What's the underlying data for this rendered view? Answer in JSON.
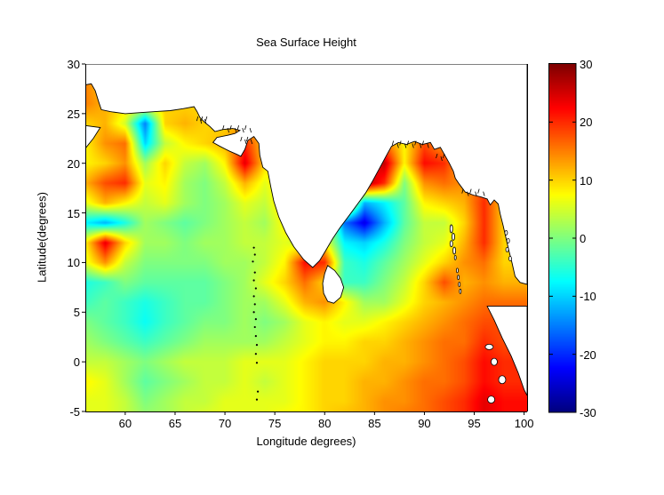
{
  "figure": {
    "title": "Sea Surface Height",
    "xlabel": "Longitude degrees)",
    "ylabel": "Latitude(degrees)"
  },
  "axes": {
    "x_ticks": [
      {
        "label": "60",
        "lon": 60
      },
      {
        "label": "65",
        "lon": 65
      },
      {
        "label": "70",
        "lon": 70
      },
      {
        "label": "75",
        "lon": 75
      },
      {
        "label": "80",
        "lon": 80
      },
      {
        "label": "85",
        "lon": 85
      },
      {
        "label": "90",
        "lon": 90
      },
      {
        "label": "95",
        "lon": 95
      },
      {
        "label": "100",
        "lon": 100
      }
    ],
    "y_ticks": [
      {
        "label": "30",
        "lat": 30
      },
      {
        "label": "25",
        "lat": 25
      },
      {
        "label": "20",
        "lat": 20
      },
      {
        "label": "15",
        "lat": 15
      },
      {
        "label": "10",
        "lat": 10
      },
      {
        "label": "5",
        "lat": 5
      },
      {
        "label": "0",
        "lat": 0
      },
      {
        "label": "-5",
        "lat": -5
      }
    ],
    "lon_min": 56,
    "lon_max": 100.3,
    "lat_min": -5,
    "lat_max": 30
  },
  "colorbar": {
    "ticks": [
      {
        "label": "30",
        "value": 30
      },
      {
        "label": "20",
        "value": 20
      },
      {
        "label": "10",
        "value": 10
      },
      {
        "label": "0",
        "value": 0
      },
      {
        "label": "-10",
        "value": -10
      },
      {
        "label": "-20",
        "value": -20
      },
      {
        "label": "-30",
        "value": -30
      }
    ],
    "clim": [
      -30,
      30
    ],
    "colormap": "jet"
  },
  "chart_data": {
    "type": "heatmap",
    "title": "Sea Surface Height",
    "xlabel": "Longitude degrees)",
    "ylabel": "Latitude(degrees)",
    "clim": [
      -30,
      30
    ],
    "colormap": "jet",
    "grid": {
      "lon_start": 56,
      "lon_step": 2,
      "ncols": 23,
      "lat_start": 30,
      "lat_step": -2,
      "nrows": 19,
      "values": [
        [
          10,
          10,
          10,
          10,
          10,
          10,
          10,
          10,
          10,
          10,
          10,
          10,
          10,
          10,
          10,
          10,
          10,
          10,
          10,
          10,
          10,
          10,
          10
        ],
        [
          15,
          10,
          10,
          10,
          10,
          10,
          10,
          10,
          10,
          10,
          10,
          10,
          10,
          10,
          10,
          10,
          10,
          10,
          10,
          10,
          10,
          10,
          10
        ],
        [
          15,
          12,
          10,
          10,
          10,
          10,
          10,
          10,
          10,
          10,
          10,
          10,
          10,
          10,
          10,
          10,
          10,
          10,
          10,
          10,
          10,
          10,
          10
        ],
        [
          10,
          12,
          5,
          -15,
          10,
          12,
          10,
          10,
          12,
          10,
          10,
          10,
          10,
          10,
          10,
          10,
          10,
          10,
          10,
          10,
          10,
          10,
          10
        ],
        [
          8,
          14,
          16,
          -10,
          4,
          8,
          10,
          12,
          20,
          10,
          10,
          10,
          10,
          10,
          12,
          16,
          8,
          18,
          12,
          10,
          10,
          10,
          10
        ],
        [
          8,
          10,
          14,
          2,
          10,
          4,
          2,
          8,
          24,
          10,
          10,
          10,
          10,
          12,
          22,
          26,
          8,
          22,
          20,
          10,
          10,
          10,
          10
        ],
        [
          12,
          18,
          20,
          6,
          8,
          2,
          0,
          4,
          12,
          6,
          10,
          10,
          10,
          10,
          28,
          20,
          0,
          14,
          16,
          14,
          18,
          10,
          10
        ],
        [
          6,
          12,
          8,
          4,
          6,
          2,
          0,
          2,
          6,
          4,
          10,
          10,
          10,
          18,
          -12,
          -8,
          -2,
          8,
          10,
          12,
          20,
          10,
          10
        ],
        [
          -8,
          -12,
          -6,
          2,
          0,
          -2,
          0,
          2,
          4,
          2,
          8,
          10,
          10,
          -16,
          -24,
          -12,
          -2,
          4,
          4,
          10,
          20,
          10,
          10
        ],
        [
          8,
          24,
          10,
          2,
          2,
          0,
          2,
          2,
          4,
          4,
          6,
          4,
          8,
          -8,
          -10,
          -6,
          0,
          4,
          6,
          12,
          20,
          10,
          10
        ],
        [
          6,
          14,
          4,
          0,
          0,
          0,
          0,
          2,
          2,
          4,
          8,
          22,
          20,
          -4,
          -6,
          -2,
          2,
          6,
          10,
          14,
          16,
          10,
          10
        ],
        [
          -6,
          -4,
          0,
          -2,
          -2,
          -2,
          -2,
          0,
          2,
          6,
          10,
          16,
          10,
          -4,
          -4,
          0,
          4,
          10,
          18,
          12,
          14,
          12,
          12
        ],
        [
          -4,
          -2,
          -4,
          -6,
          -4,
          -2,
          -2,
          0,
          2,
          2,
          6,
          12,
          14,
          8,
          2,
          2,
          6,
          10,
          12,
          14,
          16,
          16,
          16
        ],
        [
          0,
          -2,
          -4,
          -7,
          -4,
          -2,
          0,
          0,
          2,
          0,
          2,
          6,
          8,
          6,
          6,
          8,
          10,
          12,
          14,
          16,
          18,
          18,
          18
        ],
        [
          2,
          0,
          -2,
          -4,
          -2,
          0,
          2,
          2,
          2,
          2,
          4,
          6,
          8,
          8,
          10,
          10,
          12,
          14,
          16,
          16,
          20,
          18,
          18
        ],
        [
          4,
          4,
          2,
          0,
          2,
          4,
          4,
          4,
          6,
          6,
          6,
          8,
          10,
          10,
          10,
          12,
          12,
          14,
          16,
          18,
          22,
          20,
          20
        ],
        [
          8,
          6,
          2,
          -2,
          0,
          2,
          4,
          4,
          6,
          4,
          6,
          8,
          10,
          10,
          12,
          12,
          14,
          16,
          16,
          18,
          22,
          20,
          20
        ],
        [
          6,
          6,
          4,
          0,
          2,
          4,
          4,
          6,
          6,
          6,
          6,
          8,
          10,
          10,
          12,
          14,
          14,
          16,
          18,
          20,
          24,
          22,
          22
        ],
        [
          6,
          6,
          4,
          2,
          2,
          4,
          6,
          6,
          6,
          6,
          8,
          8,
          10,
          12,
          12,
          14,
          16,
          16,
          18,
          20,
          24,
          22,
          22
        ]
      ]
    },
    "land_polygons": {
      "mainland": [
        [
          56.0,
          30
        ],
        [
          100.3,
          30
        ],
        [
          100.3,
          7.8
        ],
        [
          99.6,
          8.0
        ],
        [
          99.1,
          8.6
        ],
        [
          98.8,
          9.9
        ],
        [
          98.5,
          11.1
        ],
        [
          98.2,
          12.4
        ],
        [
          97.9,
          13.7
        ],
        [
          97.6,
          14.9
        ],
        [
          97.4,
          15.9
        ],
        [
          97.0,
          16.3
        ],
        [
          96.6,
          15.8
        ],
        [
          96.3,
          16.4
        ],
        [
          95.7,
          16.6
        ],
        [
          94.9,
          16.8
        ],
        [
          94.1,
          17.1
        ],
        [
          93.5,
          17.9
        ],
        [
          93.1,
          18.5
        ],
        [
          92.9,
          19.2
        ],
        [
          92.5,
          20.0
        ],
        [
          92.0,
          20.9
        ],
        [
          91.6,
          21.6
        ],
        [
          91.0,
          21.4
        ],
        [
          90.6,
          22.1
        ],
        [
          89.8,
          21.9
        ],
        [
          89.0,
          22.2
        ],
        [
          88.2,
          21.9
        ],
        [
          87.4,
          22.1
        ],
        [
          86.7,
          21.7
        ],
        [
          86.2,
          20.8
        ],
        [
          85.5,
          19.5
        ],
        [
          84.8,
          18.2
        ],
        [
          84.1,
          17.0
        ],
        [
          83.3,
          15.9
        ],
        [
          82.5,
          14.8
        ],
        [
          81.6,
          13.6
        ],
        [
          80.8,
          12.4
        ],
        [
          80.1,
          11.2
        ],
        [
          79.5,
          10.2
        ],
        [
          78.8,
          9.5
        ],
        [
          77.9,
          10.3
        ],
        [
          76.9,
          11.6
        ],
        [
          76.1,
          13.0
        ],
        [
          75.4,
          14.6
        ],
        [
          74.9,
          16.2
        ],
        [
          74.6,
          17.6
        ],
        [
          74.3,
          19.2
        ],
        [
          73.8,
          19.6
        ],
        [
          73.5,
          20.8
        ],
        [
          73.4,
          22.0
        ],
        [
          72.9,
          22.7
        ],
        [
          72.3,
          22.3
        ],
        [
          72.0,
          21.4
        ],
        [
          71.6,
          20.7
        ],
        [
          71.2,
          20.9
        ],
        [
          70.5,
          21.2
        ],
        [
          69.5,
          21.7
        ],
        [
          68.8,
          22.1
        ],
        [
          69.2,
          22.6
        ],
        [
          70.2,
          22.8
        ],
        [
          71.0,
          23.0
        ],
        [
          71.5,
          23.3
        ],
        [
          70.8,
          23.5
        ],
        [
          69.8,
          23.4
        ],
        [
          69.0,
          23.2
        ],
        [
          68.5,
          23.7
        ],
        [
          68.0,
          24.1
        ],
        [
          67.5,
          24.6
        ],
        [
          67.2,
          25.2
        ],
        [
          66.9,
          25.7
        ],
        [
          65.8,
          25.5
        ],
        [
          64.5,
          25.3
        ],
        [
          63.0,
          25.2
        ],
        [
          61.5,
          25.1
        ],
        [
          60.0,
          25.0
        ],
        [
          58.5,
          25.2
        ],
        [
          57.6,
          25.4
        ],
        [
          57.3,
          26.3
        ],
        [
          57.0,
          27.3
        ],
        [
          56.6,
          28.0
        ],
        [
          56.0,
          27.9
        ]
      ],
      "oman": [
        [
          56.0,
          23.8
        ],
        [
          57.5,
          23.6
        ],
        [
          56.8,
          22.5
        ],
        [
          56.0,
          21.5
        ]
      ],
      "sri_lanka": [
        [
          80.3,
          9.7
        ],
        [
          81.0,
          9.2
        ],
        [
          81.6,
          8.4
        ],
        [
          81.9,
          7.5
        ],
        [
          81.6,
          6.5
        ],
        [
          80.9,
          5.9
        ],
        [
          80.3,
          6.1
        ],
        [
          79.9,
          6.9
        ],
        [
          79.8,
          7.9
        ],
        [
          80.0,
          8.9
        ]
      ],
      "sumatra": [
        [
          96.3,
          5.6
        ],
        [
          97.0,
          4.2
        ],
        [
          97.8,
          2.4
        ],
        [
          98.7,
          0.6
        ],
        [
          99.4,
          -1.1
        ],
        [
          100.0,
          -2.8
        ],
        [
          100.3,
          -3.4
        ],
        [
          100.3,
          5.6
        ]
      ]
    },
    "islands": [
      [
        92.7,
        13.4,
        3,
        9
      ],
      [
        92.9,
        12.6,
        3,
        8
      ],
      [
        92.7,
        11.9,
        3,
        7
      ],
      [
        93.0,
        11.2,
        3,
        8
      ],
      [
        93.1,
        10.5,
        2,
        5
      ],
      [
        93.3,
        9.2,
        2,
        5
      ],
      [
        93.4,
        8.5,
        2,
        5
      ],
      [
        93.5,
        7.8,
        2,
        5
      ],
      [
        93.6,
        7.1,
        2,
        5
      ],
      [
        98.2,
        13.0,
        3,
        5
      ],
      [
        98.4,
        12.2,
        3,
        5
      ],
      [
        98.3,
        11.3,
        3,
        5
      ],
      [
        98.6,
        10.4,
        3,
        5
      ],
      [
        96.5,
        1.5,
        9,
        6
      ],
      [
        97.0,
        0.0,
        7,
        8
      ],
      [
        97.8,
        -1.8,
        8,
        9
      ],
      [
        96.7,
        -3.8,
        8,
        8
      ]
    ],
    "island_dots": [
      [
        72.9,
        11.5
      ],
      [
        73.0,
        10.8
      ],
      [
        72.8,
        10.1
      ],
      [
        73.0,
        9.0
      ],
      [
        72.9,
        8.2
      ],
      [
        73.1,
        7.4
      ],
      [
        72.9,
        6.6
      ],
      [
        73.0,
        5.8
      ],
      [
        72.9,
        5.0
      ],
      [
        73.1,
        4.3
      ],
      [
        73.0,
        3.5
      ],
      [
        73.1,
        2.6
      ],
      [
        73.2,
        1.7
      ],
      [
        73.1,
        0.8
      ],
      [
        73.2,
        -0.1
      ],
      [
        73.3,
        -3.0
      ],
      [
        73.2,
        -3.8
      ]
    ],
    "hatch_clusters": [
      {
        "lon0": 67.3,
        "lon1": 68.2,
        "lat": 24.35,
        "n": 5
      },
      {
        "lon0": 69.9,
        "lon1": 72.5,
        "lat": 23.45,
        "n": 8
      },
      {
        "lon0": 71.7,
        "lon1": 72.6,
        "lat": 22.3,
        "n": 4
      },
      {
        "lon0": 86.9,
        "lon1": 90.3,
        "lat": 21.9,
        "n": 10
      },
      {
        "lon0": 91.3,
        "lon1": 92.0,
        "lat": 20.6,
        "n": 3
      },
      {
        "lon0": 93.9,
        "lon1": 95.9,
        "lat": 17.05,
        "n": 6
      }
    ]
  }
}
